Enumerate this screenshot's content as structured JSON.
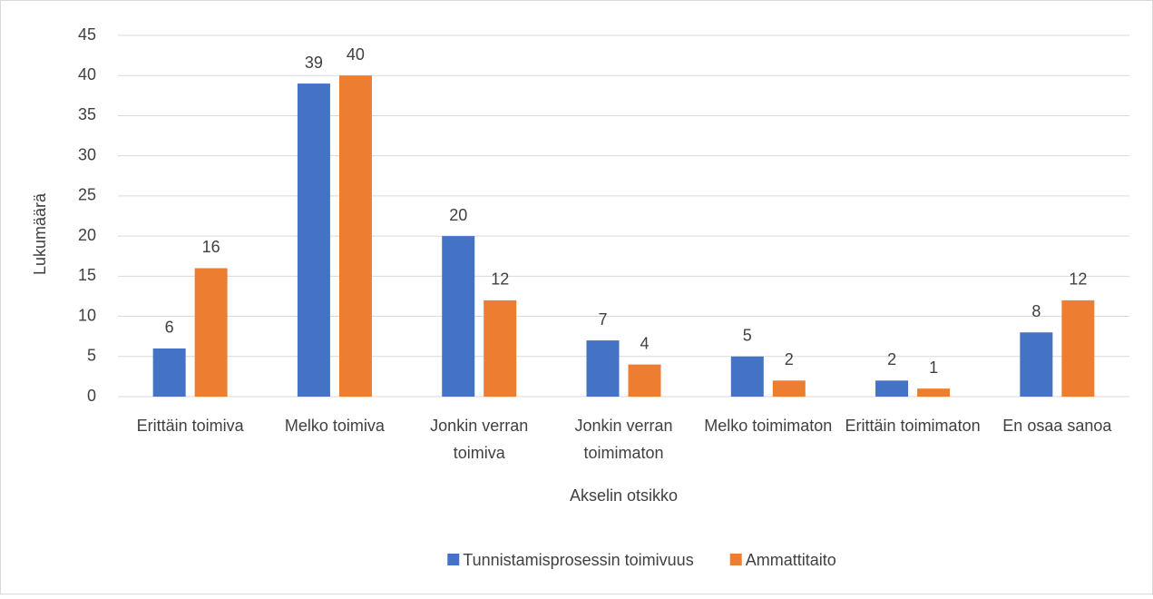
{
  "chart_data": {
    "type": "bar",
    "categories": [
      "Erittäin toimiva",
      "Melko toimiva",
      "Jonkin verran toimiva",
      "Jonkin verran toimimaton",
      "Melko toimimaton",
      "Erittäin toimimaton",
      "En osaa sanoa"
    ],
    "series": [
      {
        "name": "Tunnistamisprosessin toimivuus",
        "color": "#4472c4",
        "values": [
          6,
          39,
          20,
          7,
          5,
          2,
          8
        ]
      },
      {
        "name": "Ammattitaito",
        "color": "#ed7d31",
        "values": [
          16,
          40,
          12,
          4,
          2,
          1,
          12
        ]
      }
    ],
    "ylim": [
      0,
      45
    ],
    "yticks": [
      0,
      5,
      10,
      15,
      20,
      25,
      30,
      35,
      40,
      45
    ],
    "xlabel": "Akselin otsikko",
    "ylabel": "Lukumäärä",
    "grid": true,
    "legend": "bottom"
  }
}
